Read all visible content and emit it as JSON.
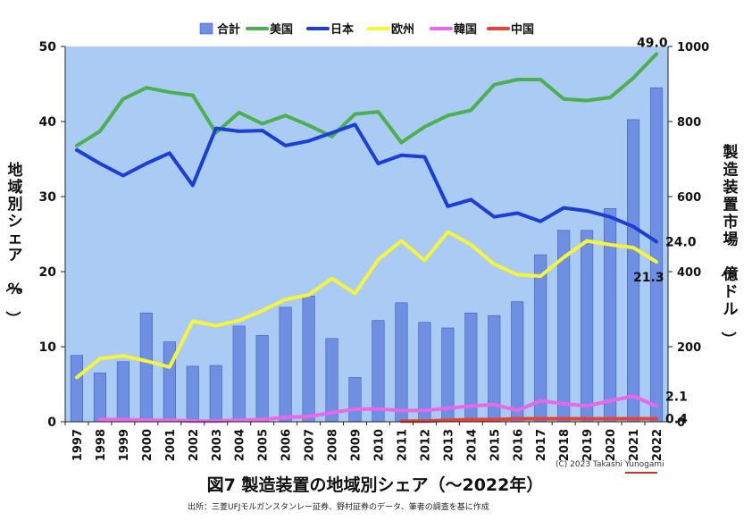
{
  "chart_data": {
    "type": "bar+line",
    "categories": [
      "1997",
      "1998",
      "1999",
      "2000",
      "2001",
      "2002",
      "2003",
      "2004",
      "2005",
      "2006",
      "2007",
      "2008",
      "2009",
      "2010",
      "2011",
      "2012",
      "2013",
      "2014",
      "2015",
      "2016",
      "2017",
      "2018",
      "2019",
      "2020",
      "2021",
      "2022"
    ],
    "bars": {
      "name": "合計",
      "color": "#6f8fe3",
      "axis": "right",
      "values": [
        177,
        130,
        160,
        290,
        213,
        148,
        150,
        255,
        230,
        305,
        335,
        222,
        118,
        270,
        317,
        265,
        250,
        290,
        283,
        320,
        445,
        510,
        510,
        568,
        805,
        890
      ]
    },
    "series": [
      {
        "name": "美国",
        "color": "#4caf50",
        "axis": "left",
        "values": [
          36.8,
          38.7,
          43.0,
          44.5,
          43.9,
          43.5,
          38.5,
          41.2,
          39.7,
          40.8,
          39.5,
          38.0,
          41.0,
          41.3,
          37.2,
          39.3,
          40.8,
          41.5,
          44.9,
          45.6,
          45.6,
          43.0,
          42.8,
          43.2,
          45.8,
          49.0
        ]
      },
      {
        "name": "日本",
        "color": "#1b3fd6",
        "axis": "left",
        "values": [
          36.2,
          34.4,
          32.8,
          34.4,
          35.8,
          31.5,
          39.1,
          38.7,
          38.8,
          36.8,
          37.4,
          38.5,
          39.6,
          34.4,
          35.5,
          35.3,
          28.7,
          29.6,
          27.3,
          27.8,
          26.7,
          28.5,
          28.1,
          27.3,
          26.0,
          24.0
        ]
      },
      {
        "name": "欧州",
        "color": "#f7f53a",
        "axis": "left",
        "values": [
          5.9,
          8.4,
          8.8,
          8.1,
          7.3,
          13.4,
          12.8,
          13.5,
          14.8,
          16.3,
          16.9,
          19.1,
          17.1,
          21.6,
          24.1,
          21.5,
          25.3,
          23.6,
          21.0,
          19.6,
          19.4,
          21.9,
          24.1,
          23.6,
          23.2,
          21.3
        ]
      },
      {
        "name": "韓国",
        "color": "#e868e8",
        "axis": "left",
        "values": [
          null,
          0.3,
          0.3,
          0.2,
          0.2,
          0.1,
          0.1,
          0.2,
          0.3,
          0.6,
          0.7,
          1.2,
          1.7,
          1.7,
          1.5,
          1.5,
          1.8,
          2.1,
          2.3,
          1.5,
          2.8,
          2.4,
          2.1,
          2.8,
          3.4,
          2.1
        ]
      },
      {
        "name": "中国",
        "color": "#e0453a",
        "axis": "left",
        "values": [
          null,
          null,
          null,
          null,
          null,
          null,
          null,
          null,
          null,
          null,
          null,
          null,
          null,
          null,
          0.1,
          0.1,
          0.2,
          0.3,
          0.3,
          0.4,
          0.4,
          0.4,
          0.4,
          0.4,
          0.4,
          0.4
        ]
      }
    ],
    "left_axis": {
      "label": "地域別シェア（%）",
      "ylim": [
        0,
        50
      ],
      "ticks": [
        "0",
        "10",
        "20",
        "30",
        "40",
        "50"
      ]
    },
    "right_axis": {
      "label": "製造装置市場（億ドル）",
      "ylim": [
        0,
        1000
      ],
      "ticks": [
        "0",
        "200",
        "400",
        "600",
        "800",
        "1000"
      ]
    },
    "annotations": [
      {
        "text": "49.0",
        "series": "美国",
        "x": "2022"
      },
      {
        "text": "24.0",
        "series": "日本",
        "x": "2022"
      },
      {
        "text": "21.3",
        "series": "欧州",
        "x": "2022"
      },
      {
        "text": "2.1",
        "series": "韓国",
        "x": "2022"
      },
      {
        "text": "0.4",
        "series": "中国",
        "x": "2022"
      }
    ],
    "legend_position": "top",
    "plot_background": "#a9cbf4",
    "grid": false
  },
  "figure_title": "図7  製造装置の地域別シェア（～2022年）",
  "copyright": "(C) 2023 Takashi Yunogami",
  "source_note": "出所：三菱UFJモルガンスタンレー証券、野村証券のデータ、筆者の調査を基に作成"
}
